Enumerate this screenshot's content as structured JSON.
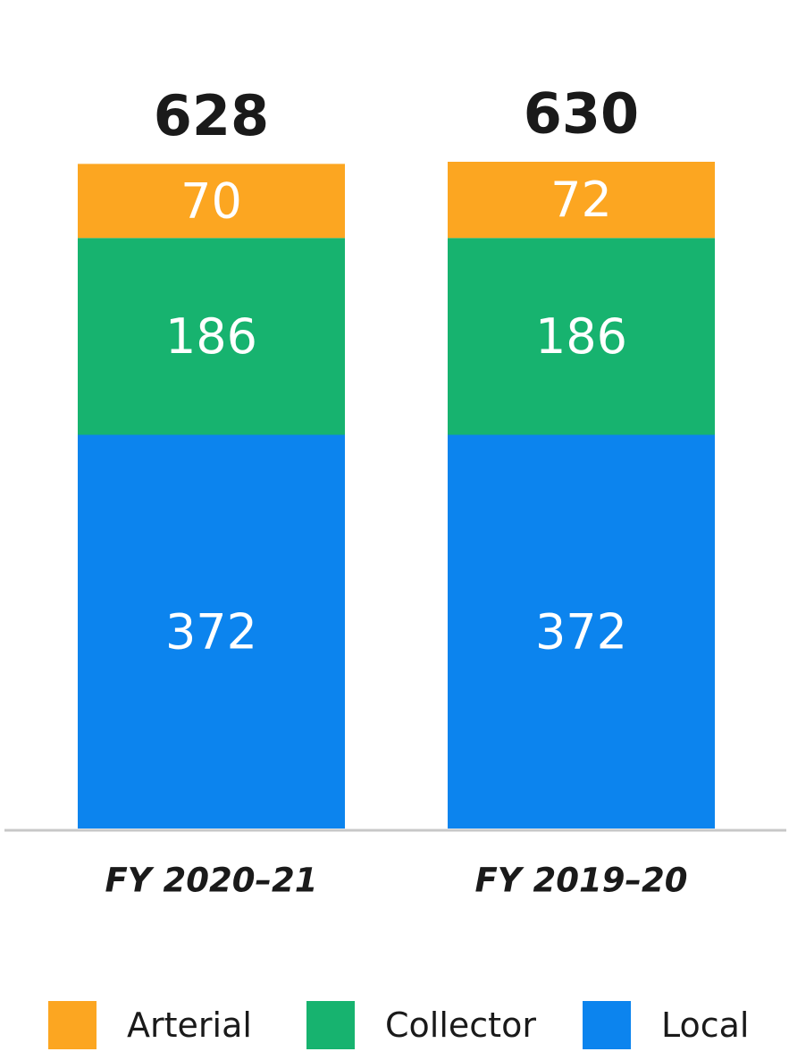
{
  "chart_data": {
    "type": "bar",
    "stacked": true,
    "categories": [
      "FY 2020–21",
      "FY 2019–20"
    ],
    "series": [
      {
        "name": "Local",
        "color": "#0c84ee",
        "values": [
          372,
          372
        ]
      },
      {
        "name": "Collector",
        "color": "#17b36f",
        "values": [
          186,
          186
        ]
      },
      {
        "name": "Arterial",
        "color": "#fca621",
        "values": [
          70,
          72
        ]
      }
    ],
    "totals": [
      "628",
      "630"
    ],
    "legend_order": [
      "Arterial",
      "Collector",
      "Local"
    ],
    "legend_position": "bottom",
    "grid": false,
    "ylim": [
      0,
      630
    ]
  }
}
